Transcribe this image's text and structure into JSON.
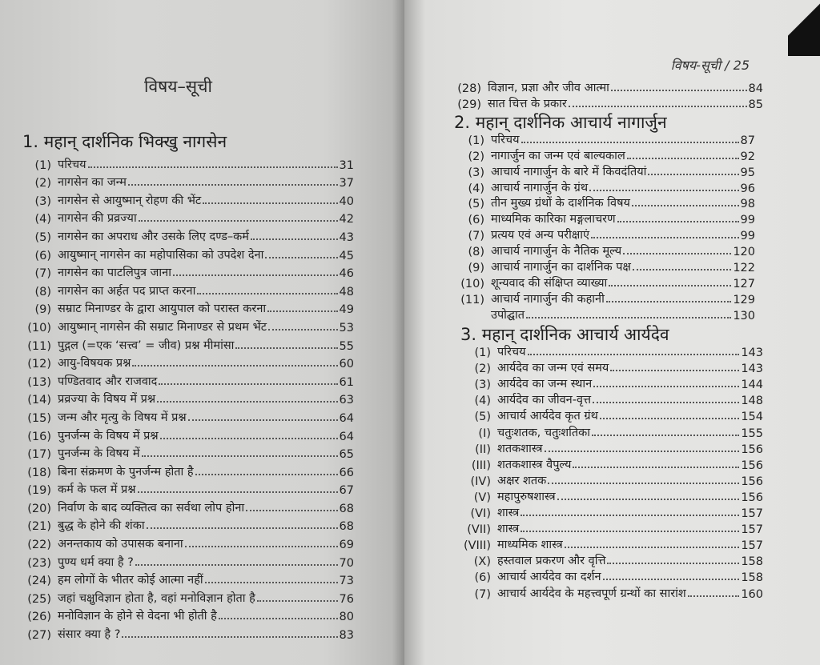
{
  "left_page": {
    "title": "विषय–सूची",
    "section1": {
      "heading": "1. महान् दार्शनिक भिक्खु नागसेन",
      "items": [
        {
          "num": "(1)",
          "text": "परिचय",
          "page": "31"
        },
        {
          "num": "(2)",
          "text": "नागसेन का जन्म",
          "page": "37"
        },
        {
          "num": "(3)",
          "text": "नागसेन से आयुष्मान् रोहण की भेंट",
          "page": "40"
        },
        {
          "num": "(4)",
          "text": "नागसेन की प्रव्रज्या",
          "page": "42"
        },
        {
          "num": "(5)",
          "text": "नागसेन का अपराध और उसके लिए दण्ड–कर्म",
          "page": "43"
        },
        {
          "num": "(6)",
          "text": "आयुष्मान् नागसेन का महोपासिका को उपदेश देना",
          "page": "45"
        },
        {
          "num": "(7)",
          "text": "नागसेन का पाटलिपुत्र जाना",
          "page": "46"
        },
        {
          "num": "(8)",
          "text": "नागसेन का अर्हत पद प्राप्त करना",
          "page": "48"
        },
        {
          "num": "(9)",
          "text": "सम्राट मिनाण्डर के द्वारा आयुपाल को परास्त करना",
          "page": "49"
        },
        {
          "num": "(10)",
          "text": "आयुष्मान् नागसेन की सम्राट मिनाण्डर से प्रथम भेंट",
          "page": "53"
        },
        {
          "num": "(11)",
          "text": "पुद्गल (=एक ‘सत्त्व’ = जीव) प्रश्न मीमांसा",
          "page": "55"
        },
        {
          "num": "(12)",
          "text": "आयु-विषयक प्रश्न",
          "page": "60"
        },
        {
          "num": "(13)",
          "text": "पण्डितवाद और राजवाद",
          "page": "61"
        },
        {
          "num": "(14)",
          "text": "प्रव्रज्या के विषय में प्रश्न",
          "page": "63"
        },
        {
          "num": "(15)",
          "text": "जन्म और मृत्यु के विषय में प्रश्न",
          "page": "64"
        },
        {
          "num": "(16)",
          "text": "पुनर्जन्म के विषय में प्रश्न",
          "page": "64"
        },
        {
          "num": "(17)",
          "text": "पुनर्जन्म के विषय में",
          "page": "65"
        },
        {
          "num": "(18)",
          "text": "बिना संक्रमण के पुनर्जन्म होता है",
          "page": "66"
        },
        {
          "num": "(19)",
          "text": "कर्म के फल में प्रश्न",
          "page": "67"
        },
        {
          "num": "(20)",
          "text": "निर्वाण के बाद व्यक्तित्व का सर्वथा लोप होना",
          "page": "68"
        },
        {
          "num": "(21)",
          "text": "बुद्ध के होने की शंका",
          "page": "68"
        },
        {
          "num": "(22)",
          "text": "अनन्तकाय को उपासक बनाना",
          "page": "69"
        },
        {
          "num": "(23)",
          "text": "पुण्य धर्म क्या है ?",
          "page": "70"
        },
        {
          "num": "(24)",
          "text": "हम लोगों के भीतर कोई आत्मा नहीं",
          "page": "73"
        },
        {
          "num": "(25)",
          "text": "जहां चक्षुविज्ञान होता है, वहां मनोविज्ञान होता है",
          "page": "76"
        },
        {
          "num": "(26)",
          "text": "मनोविज्ञान के होने से वेदना भी होती है",
          "page": "80"
        },
        {
          "num": "(27)",
          "text": "संसार क्या है ?",
          "page": "83"
        }
      ]
    }
  },
  "right_page": {
    "running_header": "विषय-सूची / 25",
    "section1_cont": {
      "items": [
        {
          "num": "(28)",
          "text": "विज्ञान, प्रज्ञा और जीव आत्मा",
          "page": "84"
        },
        {
          "num": "(29)",
          "text": "सात चित्त के प्रकार",
          "page": "85"
        }
      ]
    },
    "section2": {
      "heading": "2. महान् दार्शनिक आचार्य नागार्जुन",
      "items": [
        {
          "num": "(1)",
          "text": "परिचय",
          "page": "87"
        },
        {
          "num": "(2)",
          "text": "नागार्जुन का जन्म एवं बाल्यकाल",
          "page": "92"
        },
        {
          "num": "(3)",
          "text": "आचार्य नागार्जुन के बारे में किवदंतियां",
          "page": "95"
        },
        {
          "num": "(4)",
          "text": "आचार्य नागार्जुन के ग्रंथ",
          "page": "96"
        },
        {
          "num": "(5)",
          "text": "तीन मुख्य ग्रंथों के दार्शनिक विषय",
          "page": "98"
        },
        {
          "num": "(6)",
          "text": "माध्यमिक कारिका मङ्गलाचरण",
          "page": "99"
        },
        {
          "num": "(7)",
          "text": "प्रत्यय एवं अन्य परीक्षाएं",
          "page": "99"
        },
        {
          "num": "(8)",
          "text": "आचार्य नागार्जुन के नैतिक मूल्य",
          "page": "120"
        },
        {
          "num": "(9)",
          "text": "आचार्य नागार्जुन का दार्शनिक पक्ष",
          "page": "122"
        },
        {
          "num": "(10)",
          "text": "शून्यवाद की संक्षिप्त व्याख्या",
          "page": "127"
        },
        {
          "num": "(11)",
          "text": "आचार्य नागार्जुन की कहानी",
          "page": "129"
        },
        {
          "num": "",
          "text": "उपोद्घात",
          "page": "130"
        }
      ]
    },
    "section3": {
      "heading": "3. महान् दार्शनिक आचार्य आर्यदेव",
      "items": [
        {
          "num": "(1)",
          "text": "परिचय",
          "page": "143"
        },
        {
          "num": "(2)",
          "text": "आर्यदेव का जन्म एवं समय",
          "page": "143"
        },
        {
          "num": "(3)",
          "text": "आर्यदेव का जन्म स्थान",
          "page": "144"
        },
        {
          "num": "(4)",
          "text": "आर्यदेव का जीवन-वृत्त",
          "page": "148"
        },
        {
          "num": "(5)",
          "text": "आचार्य आर्यदेव कृत ग्रंथ",
          "page": "154"
        },
        {
          "num": "(I)",
          "text": "चतुःशतक, चतुःशतिका",
          "page": "155"
        },
        {
          "num": "(II)",
          "text": "शतकशास्त्र",
          "page": "156"
        },
        {
          "num": "(III)",
          "text": "शतकशास्त्र वैपुल्य",
          "page": "156"
        },
        {
          "num": "(IV)",
          "text": "अक्षर शतक",
          "page": "156"
        },
        {
          "num": "(V)",
          "text": "महापुरुषशास्त्र",
          "page": "156"
        },
        {
          "num": "(VI)",
          "text": "शास्त्र",
          "page": "157"
        },
        {
          "num": "(VII)",
          "text": "शास्त्र",
          "page": "157"
        },
        {
          "num": "(VIII)",
          "text": "माध्यमिक शास्त्र",
          "page": "157"
        },
        {
          "num": "(X)",
          "text": "हस्तवाल प्रकरण और वृत्ति",
          "page": "158"
        },
        {
          "num": "(6)",
          "text": "आचार्य आर्यदेव का दर्शन",
          "page": "158"
        },
        {
          "num": "(7)",
          "text": "आचार्य आर्यदेव के महत्त्वपूर्ण ग्रन्थों का सारांश",
          "page": "160"
        }
      ]
    }
  }
}
